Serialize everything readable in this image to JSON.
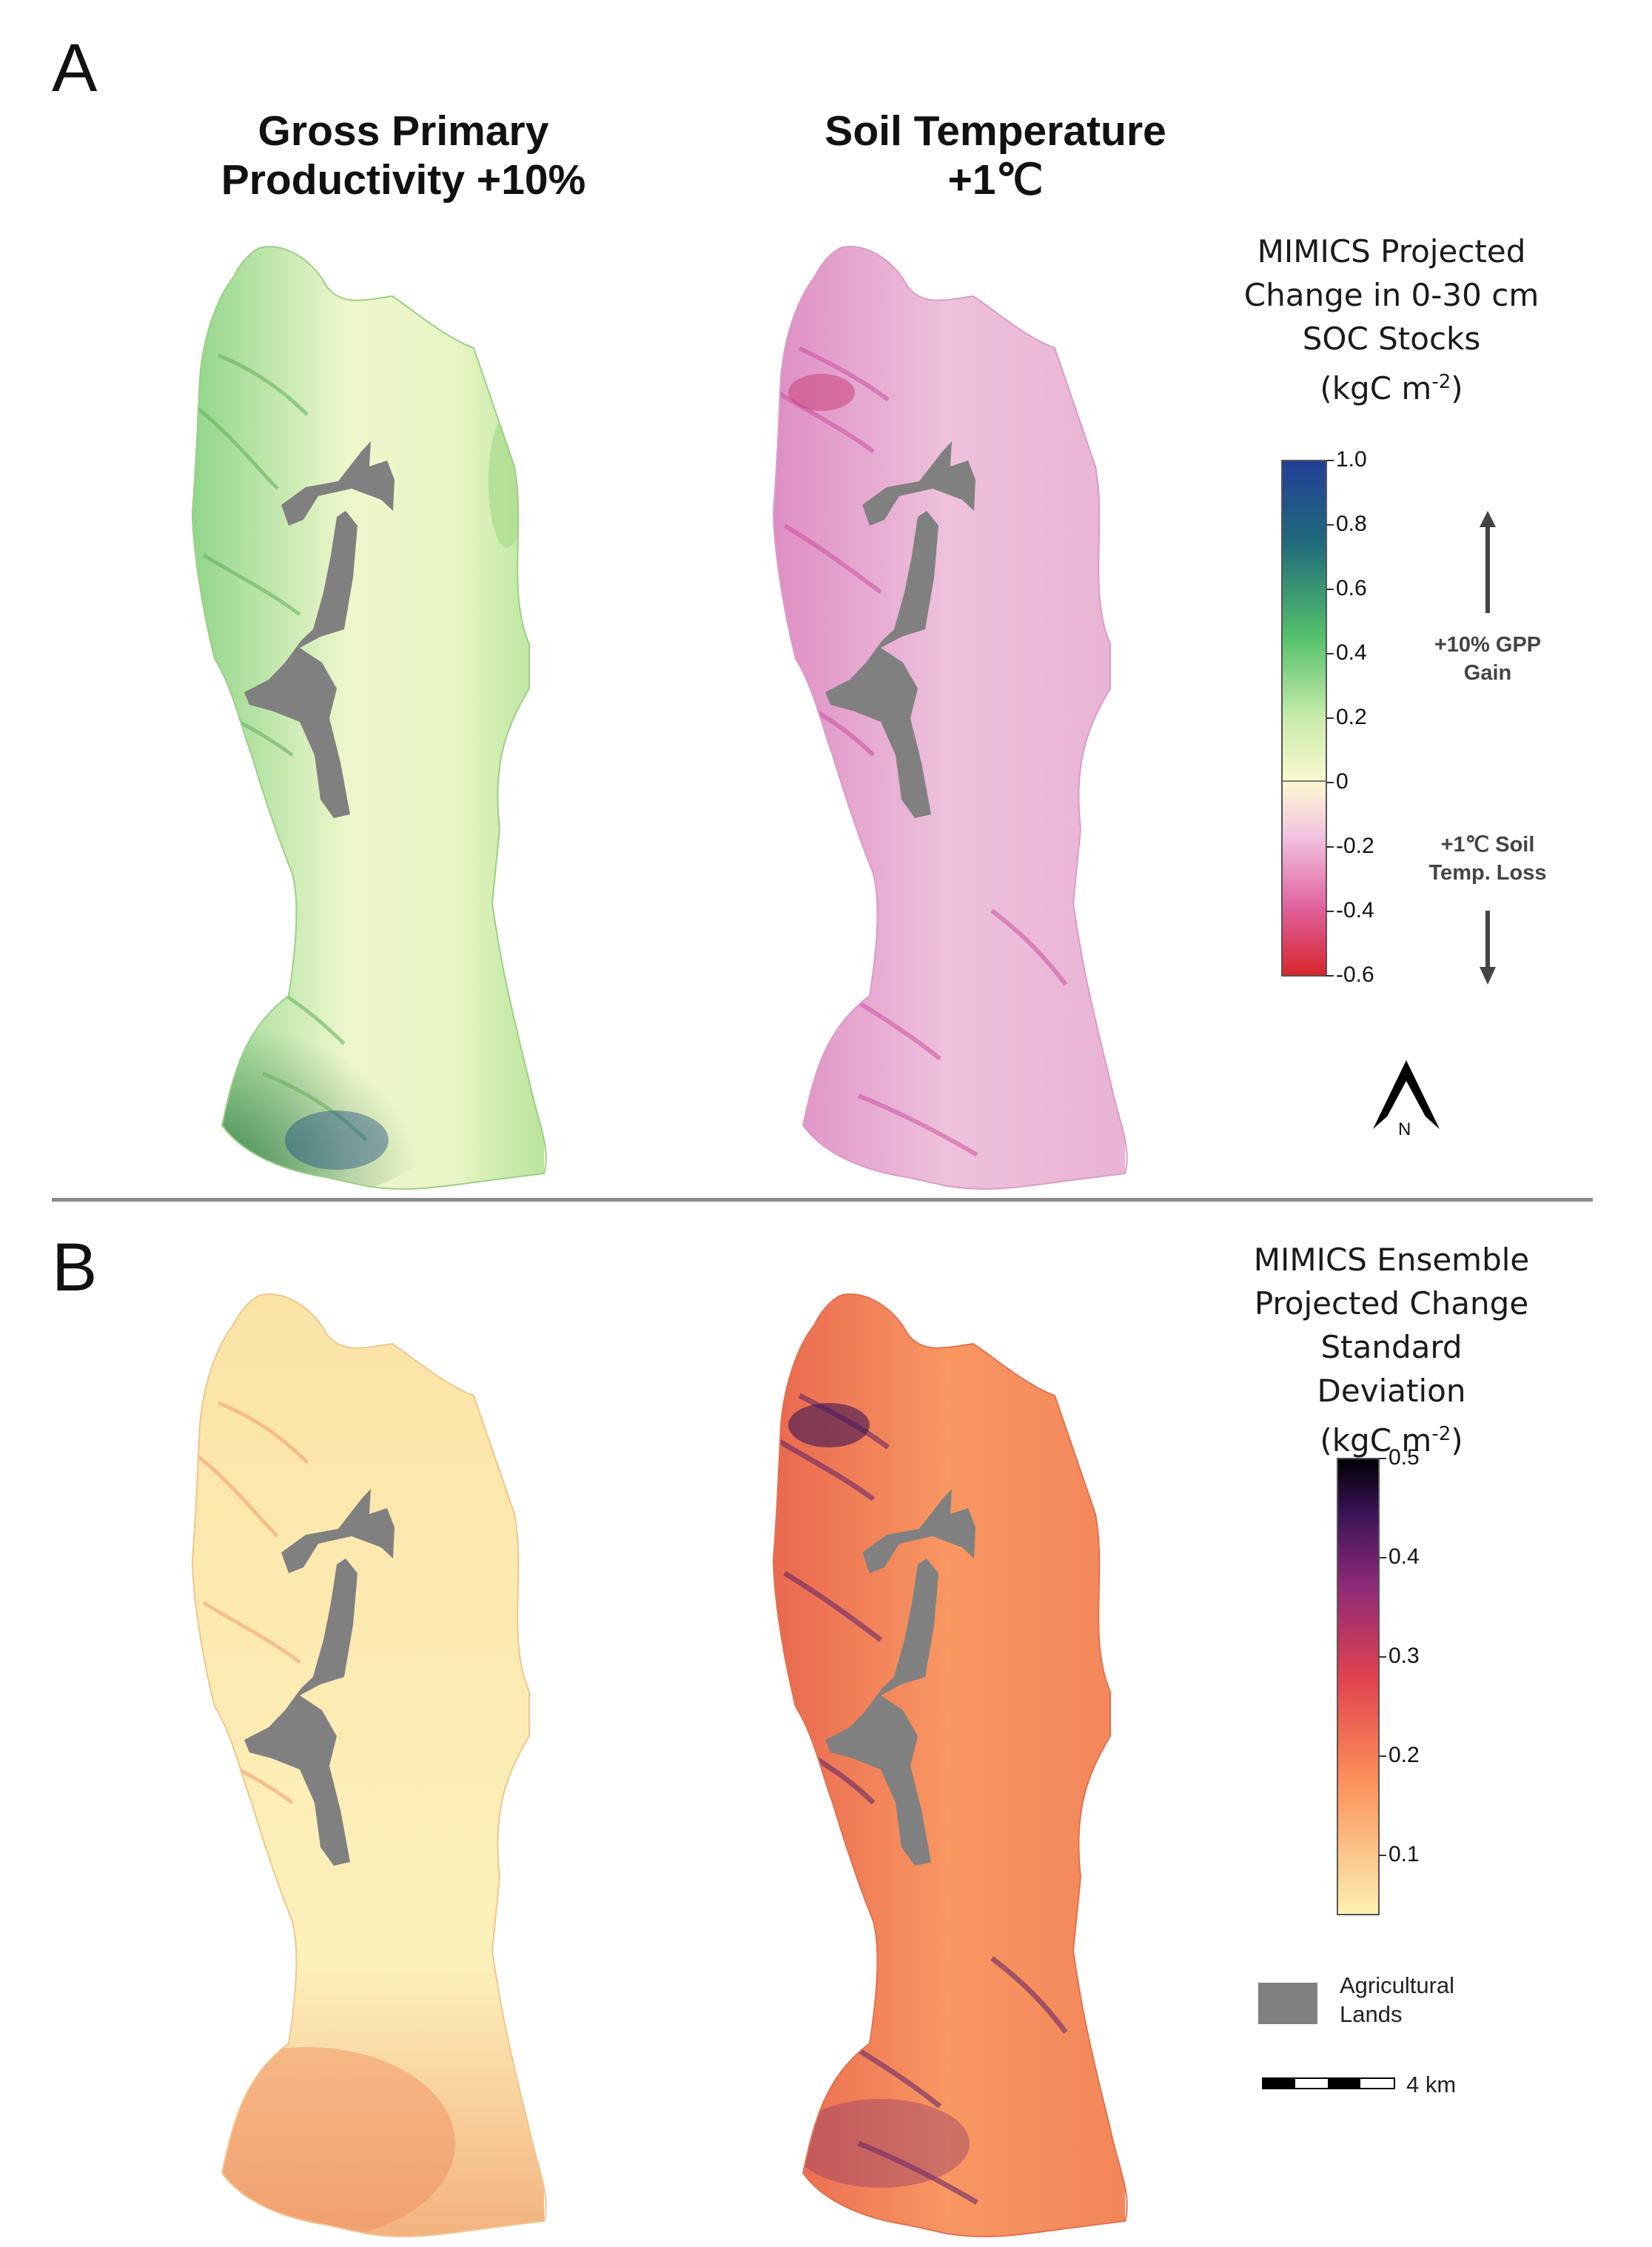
{
  "panels": {
    "a": {
      "letter": "A"
    },
    "b": {
      "letter": "B"
    }
  },
  "columns": {
    "left": {
      "title_line1": "Gross Primary",
      "title_line2": "Productivity +10%"
    },
    "right": {
      "title_line1": "Soil Temperature",
      "title_line2": "+1℃"
    }
  },
  "legend_a": {
    "title_line1": "MIMICS Projected",
    "title_line2": "Change in 0-30 cm",
    "title_line3": "SOC Stocks",
    "title_line4_main": "(kgC m",
    "title_line4_sup": "-2",
    "title_line4_end": ")",
    "ticks": [
      "1.0",
      "0.8",
      "0.6",
      "0.4",
      "0.2",
      "0",
      "-0.2",
      "-0.4",
      "-0.6"
    ],
    "range": [
      -0.6,
      1.0
    ],
    "gain_label_line1": "+10% GPP",
    "gain_label_line2": "Gain",
    "loss_label_line1": "+1℃ Soil",
    "loss_label_line2": "Temp. Loss",
    "colors": [
      "#d7262b",
      "#e0609c",
      "#f2c3e0",
      "#fbf7d0",
      "#c9edaa",
      "#52c06a",
      "#216a7b",
      "#213f97"
    ]
  },
  "legend_b": {
    "title_line1": "MIMICS Ensemble",
    "title_line2": "Projected Change",
    "title_line3": "Standard Deviation",
    "title_line4_main": "(kgC m",
    "title_line4_sup": "-2",
    "title_line4_end": ")",
    "ticks": [
      "0.5",
      "0.4",
      "0.3",
      "0.2",
      "0.1"
    ],
    "colors": [
      "#fdf1b2",
      "#fb8e58",
      "#e1424f",
      "#8d2a78",
      "#3a1356",
      "#000004"
    ]
  },
  "north_arrow": {
    "label": "N"
  },
  "agri_legend": {
    "label_line1": "Agricultural",
    "label_line2": "Lands",
    "color": "#808080"
  },
  "scale_bar": {
    "label": "4 km"
  },
  "maps": {
    "gpp_change": {
      "fill_color": "#d2eeac",
      "accent_color": "#3f9c4f"
    },
    "temp_change": {
      "fill_color": "#eab4d6",
      "accent_color": "#c8479a"
    },
    "gpp_sd": {
      "fill_color": "#fbe6a8",
      "accent_color": "#f29a62"
    },
    "temp_sd": {
      "fill_color": "#f58f5c",
      "accent_color": "#4a1a63"
    }
  },
  "divider_color": "#8a8a8a"
}
